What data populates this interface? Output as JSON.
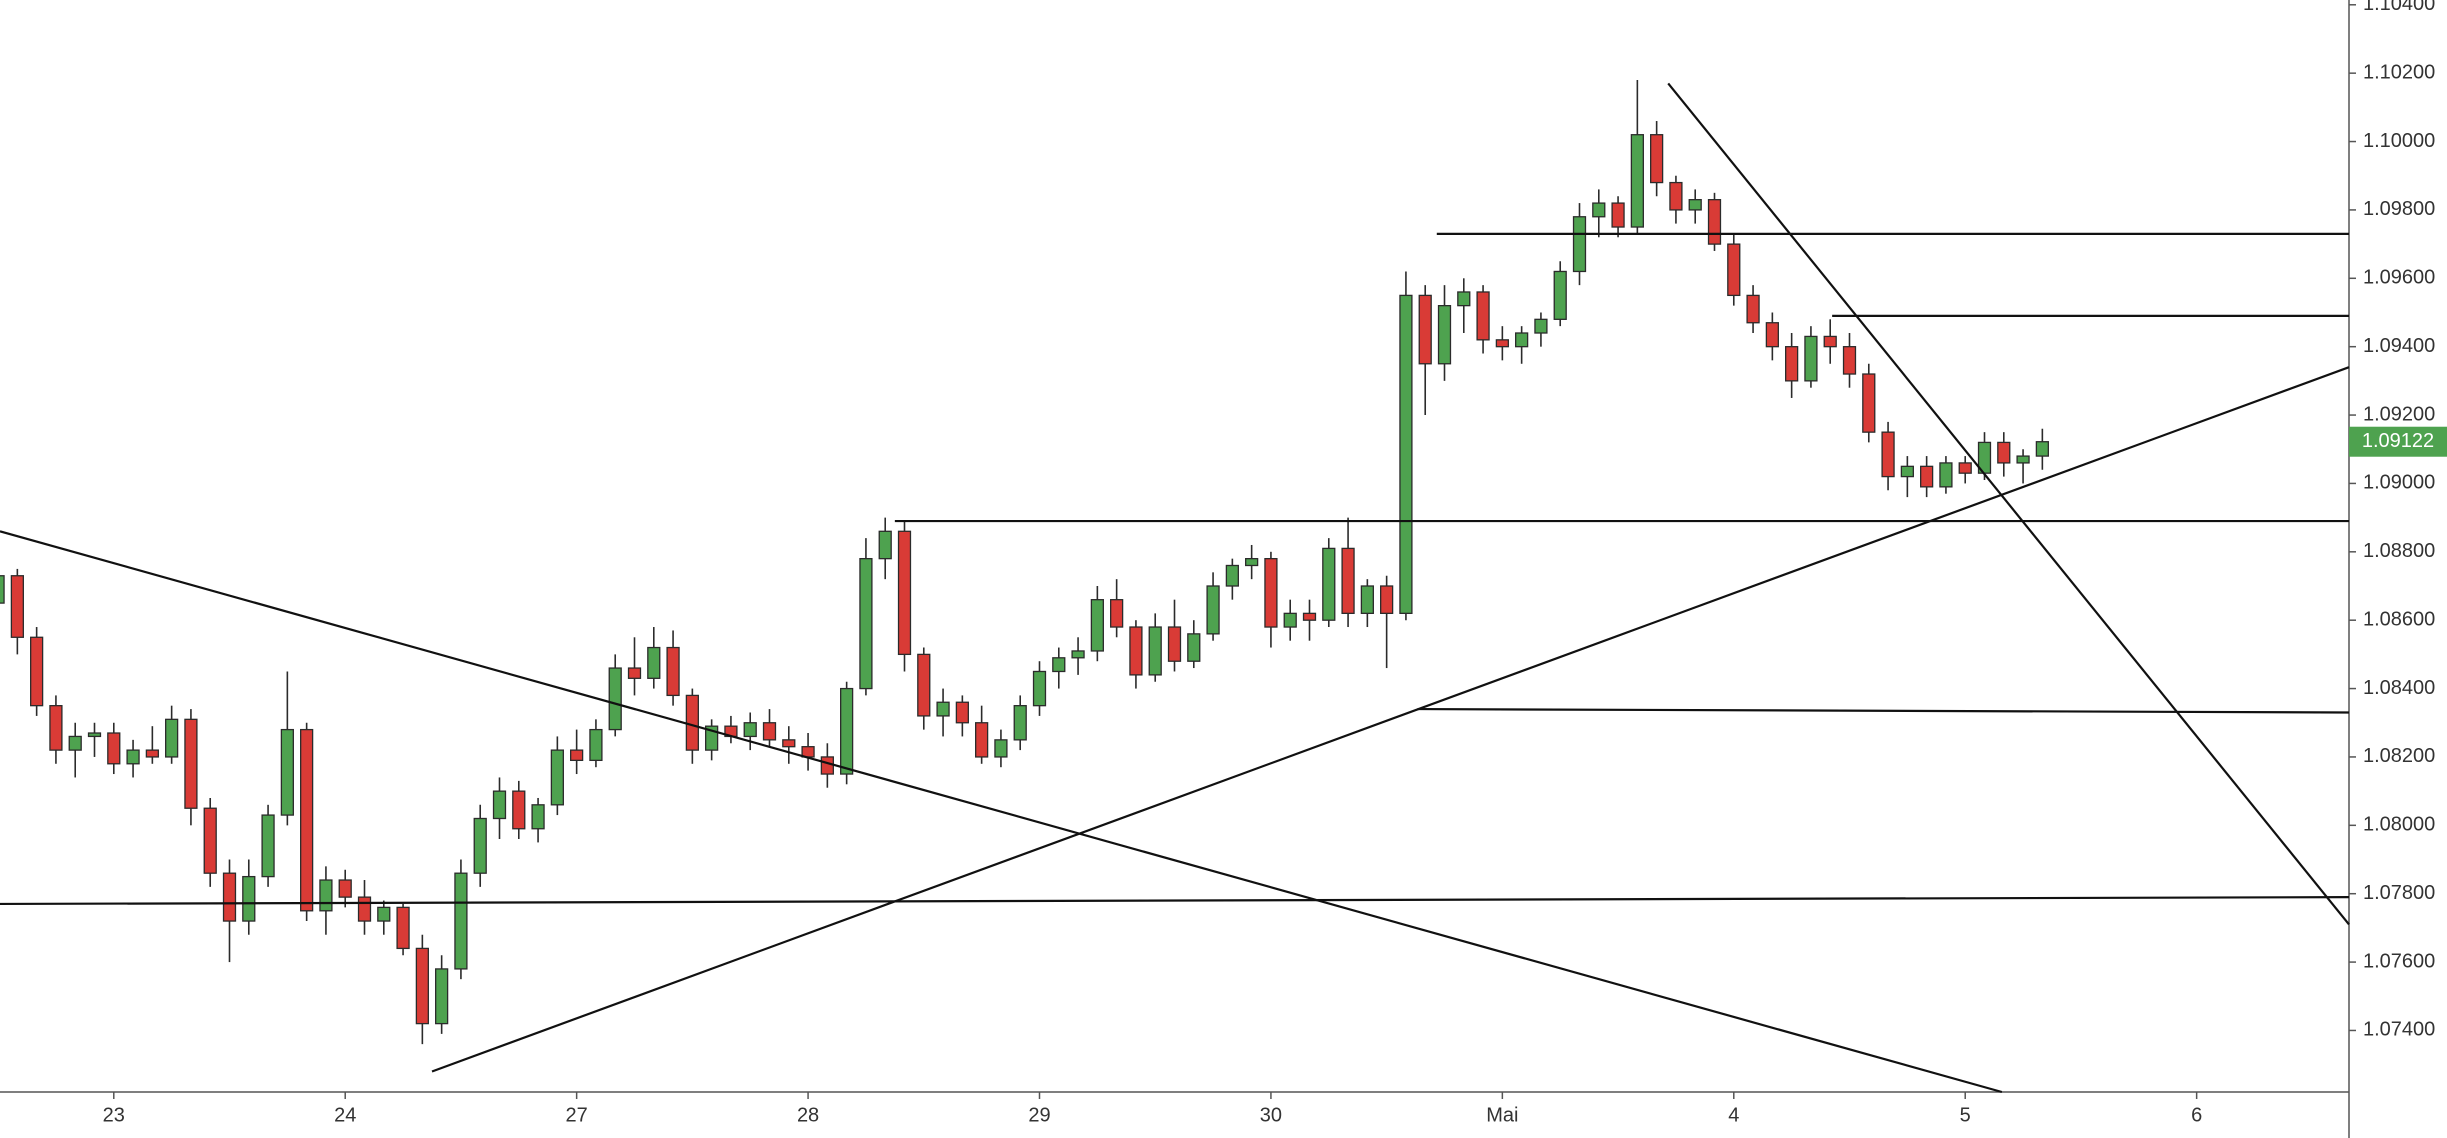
{
  "chart_data": {
    "type": "candlestick",
    "open": [
      1.0865,
      1.0873,
      1.0855,
      1.0835,
      1.0822,
      1.0826,
      1.0827,
      1.0818,
      1.0822,
      1.082,
      1.0831,
      1.0805,
      1.0786,
      1.0772,
      1.0785,
      1.0803,
      1.0828,
      1.0775,
      1.0784,
      1.0779,
      1.0772,
      1.0776,
      1.0764,
      1.0742,
      1.0758,
      1.0786,
      1.0802,
      1.081,
      1.0799,
      1.0806,
      1.0822,
      1.0819,
      1.0828,
      1.0846,
      1.0843,
      1.0852,
      1.0838,
      1.0822,
      1.0829,
      1.0826,
      1.083,
      1.0825,
      1.0823,
      1.082,
      1.0815,
      1.084,
      1.0878,
      1.0886,
      1.085,
      1.0832,
      1.0836,
      1.083,
      1.082,
      1.0825,
      1.0835,
      1.0845,
      1.0849,
      1.0851,
      1.0866,
      1.0858,
      1.0844,
      1.0858,
      1.0848,
      1.0856,
      1.087,
      1.0876,
      1.0878,
      1.0858,
      1.0862,
      1.086,
      1.0881,
      1.0862,
      1.087,
      1.0862,
      1.0955,
      1.0935,
      1.0952,
      1.0956,
      1.0942,
      1.094,
      1.0944,
      1.0948,
      1.0962,
      1.0978,
      1.0982,
      1.0975,
      1.1002,
      1.0988,
      1.098,
      1.0983,
      1.097,
      1.0955,
      1.0947,
      1.094,
      1.093,
      1.0943,
      1.094,
      1.0932,
      1.0915,
      1.0902,
      1.0905,
      1.0899,
      1.0906,
      1.0903,
      1.0912,
      1.0906,
      1.0908
    ],
    "high": [
      1.0877,
      1.0875,
      1.0858,
      1.0838,
      1.083,
      1.083,
      1.083,
      1.0825,
      1.0829,
      1.0835,
      1.0834,
      1.0808,
      1.079,
      1.079,
      1.0806,
      1.0845,
      1.083,
      1.0788,
      1.0787,
      1.0784,
      1.0778,
      1.0777,
      1.0768,
      1.0762,
      1.079,
      1.0806,
      1.0814,
      1.0813,
      1.0808,
      1.0826,
      1.0828,
      1.0831,
      1.085,
      1.0855,
      1.0858,
      1.0857,
      1.084,
      1.0831,
      1.0832,
      1.0833,
      1.0834,
      1.0829,
      1.0827,
      1.0824,
      1.0842,
      1.0884,
      1.089,
      1.0889,
      1.0852,
      1.084,
      1.0838,
      1.0835,
      1.0828,
      1.0838,
      1.0848,
      1.0852,
      1.0855,
      1.087,
      1.0872,
      1.086,
      1.0862,
      1.0866,
      1.086,
      1.0874,
      1.0878,
      1.0882,
      1.088,
      1.0866,
      1.0866,
      1.0884,
      1.089,
      1.0872,
      1.0873,
      1.0962,
      1.0958,
      1.0958,
      1.096,
      1.0958,
      1.0946,
      1.0946,
      1.095,
      1.0965,
      1.0982,
      1.0986,
      1.0984,
      1.1018,
      1.1006,
      1.099,
      1.0986,
      1.0985,
      1.0973,
      1.0958,
      1.095,
      1.0944,
      1.0946,
      1.0948,
      1.0944,
      1.0935,
      1.0918,
      1.0908,
      1.0908,
      1.0908,
      1.0908,
      1.0915,
      1.0915,
      1.091,
      1.0916
    ],
    "low": [
      1.0858,
      1.085,
      1.0832,
      1.0818,
      1.0814,
      1.082,
      1.0815,
      1.0814,
      1.0818,
      1.0818,
      1.08,
      1.0782,
      1.076,
      1.0768,
      1.0782,
      1.08,
      1.0772,
      1.0768,
      1.0776,
      1.0768,
      1.0768,
      1.0762,
      1.0736,
      1.0739,
      1.0755,
      1.0782,
      1.0796,
      1.0796,
      1.0795,
      1.0803,
      1.0815,
      1.0817,
      1.0826,
      1.0838,
      1.084,
      1.0835,
      1.0818,
      1.0819,
      1.0824,
      1.0822,
      1.0823,
      1.0818,
      1.0816,
      1.0811,
      1.0812,
      1.0838,
      1.0872,
      1.0845,
      1.0828,
      1.0826,
      1.0826,
      1.0818,
      1.0817,
      1.0822,
      1.0832,
      1.084,
      1.0844,
      1.0848,
      1.0855,
      1.084,
      1.0842,
      1.0845,
      1.0846,
      1.0854,
      1.0866,
      1.0872,
      1.0852,
      1.0854,
      1.0854,
      1.0858,
      1.0858,
      1.0858,
      1.0846,
      1.086,
      1.092,
      1.093,
      1.0944,
      1.0938,
      1.0936,
      1.0935,
      1.094,
      1.0946,
      1.0958,
      1.0972,
      1.0972,
      1.0973,
      1.0984,
      1.0976,
      1.0976,
      1.0968,
      1.0952,
      1.0944,
      1.0936,
      1.0925,
      1.0928,
      1.0935,
      1.0928,
      1.0912,
      1.0898,
      1.0896,
      1.0896,
      1.0897,
      1.09,
      1.0901,
      1.0902,
      1.09,
      1.0904
    ],
    "close": [
      1.0873,
      1.0855,
      1.0835,
      1.0822,
      1.0826,
      1.0827,
      1.0818,
      1.0822,
      1.082,
      1.0831,
      1.0805,
      1.0786,
      1.0772,
      1.0785,
      1.0803,
      1.0828,
      1.0775,
      1.0784,
      1.0779,
      1.0772,
      1.0776,
      1.0764,
      1.0742,
      1.0758,
      1.0786,
      1.0802,
      1.081,
      1.0799,
      1.0806,
      1.0822,
      1.0819,
      1.0828,
      1.0846,
      1.0843,
      1.0852,
      1.0838,
      1.0822,
      1.0829,
      1.0826,
      1.083,
      1.0825,
      1.0823,
      1.082,
      1.0815,
      1.084,
      1.0878,
      1.0886,
      1.085,
      1.0832,
      1.0836,
      1.083,
      1.082,
      1.0825,
      1.0835,
      1.0845,
      1.0849,
      1.0851,
      1.0866,
      1.0858,
      1.0844,
      1.0858,
      1.0848,
      1.0856,
      1.087,
      1.0876,
      1.0878,
      1.0858,
      1.0862,
      1.086,
      1.0881,
      1.0862,
      1.087,
      1.0862,
      1.0955,
      1.0935,
      1.0952,
      1.0956,
      1.0942,
      1.094,
      1.0944,
      1.0948,
      1.0962,
      1.0978,
      1.0982,
      1.0975,
      1.1002,
      1.0988,
      1.098,
      1.0983,
      1.097,
      1.0955,
      1.0947,
      1.094,
      1.093,
      1.0943,
      1.094,
      1.0932,
      1.0915,
      1.0902,
      1.0905,
      1.0899,
      1.0906,
      1.0903,
      1.0912,
      1.0906,
      1.0908,
      1.09122
    ],
    "up_color": "#4ea24f",
    "down_color": "#d93b36",
    "xlim": [
      0.1,
      121.9
    ],
    "xticks": [
      {
        "value": 6,
        "label": "23"
      },
      {
        "value": 18,
        "label": "24"
      },
      {
        "value": 30,
        "label": "27"
      },
      {
        "value": 42,
        "label": "28"
      },
      {
        "value": 54,
        "label": "29"
      },
      {
        "value": 66,
        "label": "30"
      },
      {
        "value": 78,
        "label": "Mai"
      },
      {
        "value": 90,
        "label": "4"
      },
      {
        "value": 102,
        "label": "5"
      },
      {
        "value": 114,
        "label": "6"
      }
    ],
    "ylim": [
      1.0722,
      1.10414
    ],
    "yticks": [
      {
        "value": 1.074,
        "label": "1.07400"
      },
      {
        "value": 1.076,
        "label": "1.07600"
      },
      {
        "value": 1.078,
        "label": "1.07800"
      },
      {
        "value": 1.08,
        "label": "1.08000"
      },
      {
        "value": 1.082,
        "label": "1.08200"
      },
      {
        "value": 1.084,
        "label": "1.08400"
      },
      {
        "value": 1.086,
        "label": "1.08600"
      },
      {
        "value": 1.088,
        "label": "1.08800"
      },
      {
        "value": 1.09,
        "label": "1.09000"
      },
      {
        "value": 1.092,
        "label": "1.09200"
      },
      {
        "value": 1.094,
        "label": "1.09400"
      },
      {
        "value": 1.096,
        "label": "1.09600"
      },
      {
        "value": 1.098,
        "label": "1.09800"
      },
      {
        "value": 1.1,
        "label": "1.10000"
      },
      {
        "value": 1.102,
        "label": "1.10200"
      },
      {
        "value": 1.104,
        "label": "1.10400"
      }
    ],
    "last_price": 1.09122,
    "drawings": [
      {
        "x": [
          0.1,
          103.9
        ],
        "y": [
          1.0886,
          1.0722
        ]
      },
      {
        "x": [
          22.5,
          121.9
        ],
        "y": [
          1.0728,
          1.0934
        ]
      },
      {
        "x": [
          86.6,
          121.9
        ],
        "y": [
          1.1017,
          1.0771
        ]
      },
      {
        "x": [
          74.6,
          121.9
        ],
        "y": [
          1.0973,
          1.0973
        ]
      },
      {
        "x": [
          95.1,
          121.9
        ],
        "y": [
          1.0949,
          1.0949
        ]
      },
      {
        "x": [
          46.5,
          121.9
        ],
        "y": [
          1.0889,
          1.0889
        ]
      },
      {
        "x": [
          73.6,
          121.9
        ],
        "y": [
          1.0834,
          1.0833
        ]
      },
      {
        "x": [
          0.1,
          121.9
        ],
        "y": [
          1.0777,
          1.0779
        ]
      }
    ]
  }
}
